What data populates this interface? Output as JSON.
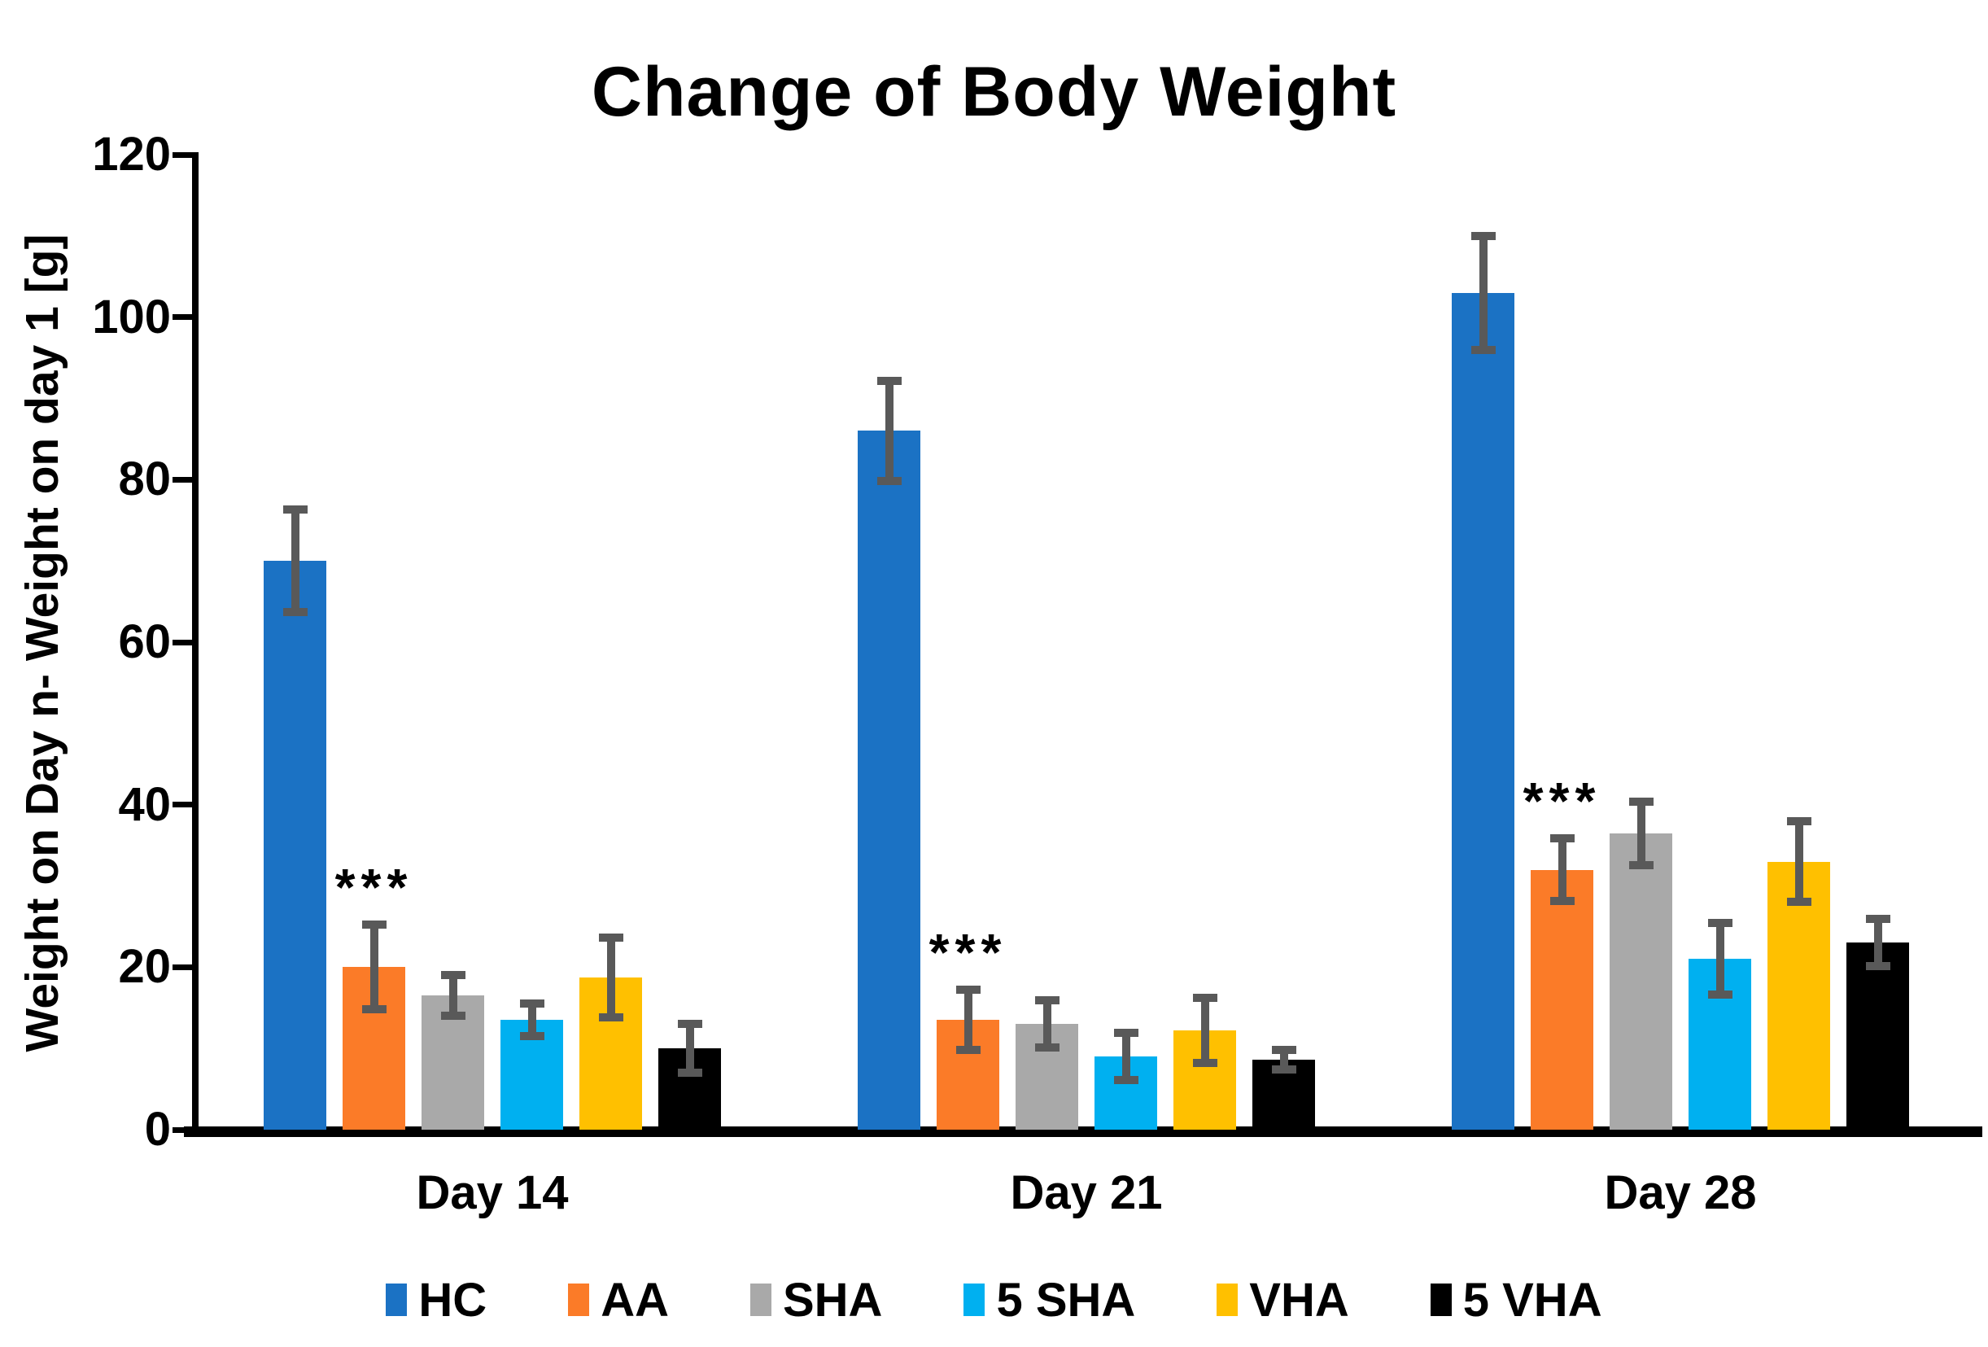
{
  "chart_data": {
    "type": "bar",
    "title": "Change of Body Weight",
    "xlabel": "",
    "ylabel": "Weight on Day n- Weight on day 1 [g]",
    "categories": [
      "Day 14",
      "Day 21",
      "Day 28"
    ],
    "ylim": [
      0,
      120
    ],
    "ytick_step": 20,
    "ytick_labels": [
      "0",
      "20",
      "40",
      "60",
      "80",
      "100",
      "120"
    ],
    "grid": false,
    "legend_position": "bottom",
    "bar_mode": "grouped",
    "error_bars": true,
    "error_bar_color": "#595959",
    "axis_color": "#000000",
    "significance_note": "*** shown above AA bars in every group",
    "series": [
      {
        "name": "HC",
        "color": "#1B72C4",
        "values": [
          70,
          86,
          103
        ],
        "errors": [
          6.3,
          6.2,
          7.0
        ],
        "sig": [
          null,
          null,
          null
        ]
      },
      {
        "name": "AA",
        "color": "#FB7B28",
        "values": [
          20,
          13.5,
          32
        ],
        "errors": [
          5.2,
          3.7,
          3.9
        ],
        "sig": [
          "***",
          "***",
          "***"
        ]
      },
      {
        "name": "SHA",
        "color": "#A9A9A9",
        "values": [
          16.5,
          13,
          36.5
        ],
        "errors": [
          2.5,
          2.9,
          3.9
        ],
        "sig": [
          null,
          null,
          null
        ]
      },
      {
        "name": "5 SHA",
        "color": "#00B0F0",
        "values": [
          13.5,
          9,
          21
        ],
        "errors": [
          2.0,
          2.9,
          4.4
        ],
        "sig": [
          null,
          null,
          null
        ]
      },
      {
        "name": "VHA",
        "color": "#FFC000",
        "values": [
          18.7,
          12.2,
          33
        ],
        "errors": [
          4.9,
          4.0,
          5.0
        ],
        "sig": [
          null,
          null,
          null
        ]
      },
      {
        "name": "5 VHA",
        "color": "#000000",
        "values": [
          10,
          8.6,
          23
        ],
        "errors": [
          3.0,
          1.2,
          2.9
        ],
        "sig": [
          null,
          null,
          null
        ]
      }
    ]
  }
}
